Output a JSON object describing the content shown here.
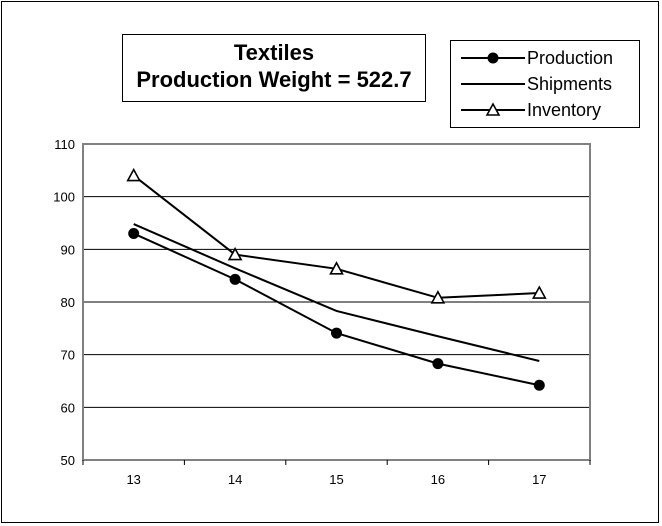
{
  "chart_data": {
    "type": "line",
    "title": "Textiles",
    "subtitle": "Production Weight = 522.7",
    "x": [
      13,
      14,
      15,
      16,
      17
    ],
    "ylim": [
      50,
      110
    ],
    "yticks": [
      50,
      60,
      70,
      80,
      90,
      100,
      110
    ],
    "grid": true,
    "legend_position": "top-right",
    "series": [
      {
        "name": "Production",
        "values": [
          93.0,
          84.3,
          74.1,
          68.3,
          64.2
        ],
        "marker": "filled-circle"
      },
      {
        "name": "Shipments",
        "values": [
          94.8,
          86.4,
          78.3,
          73.5,
          68.8
        ],
        "marker": "none"
      },
      {
        "name": "Inventory",
        "values": [
          104.0,
          89.0,
          86.3,
          80.8,
          81.7
        ],
        "marker": "open-triangle"
      }
    ]
  },
  "colors": {
    "line": "#000000",
    "grid": "#000000",
    "plot_border": "#808080"
  }
}
